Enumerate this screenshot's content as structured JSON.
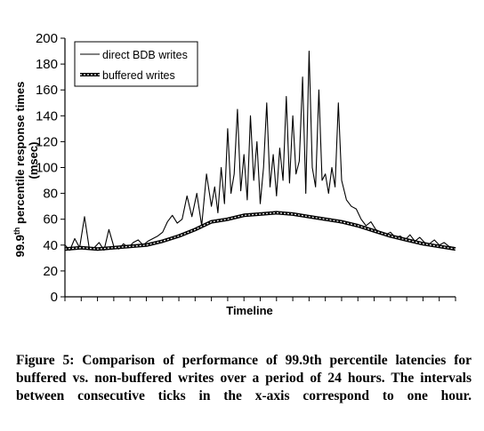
{
  "chart_data": {
    "type": "line",
    "title": "",
    "xlabel": "Timeline",
    "ylabel_main": "99.9th percentile response times",
    "ylabel_sup": "th",
    "ylabel_unit": "(msec)",
    "ylim": [
      0,
      200
    ],
    "yticks": [
      0,
      20,
      40,
      60,
      80,
      100,
      120,
      140,
      160,
      180,
      200
    ],
    "xlim": [
      0,
      24
    ],
    "xtick_count": 24,
    "legend": {
      "placement": "top-left"
    },
    "series": [
      {
        "name": "direct BDB writes",
        "color": "#000000",
        "x": [
          0.0,
          0.3,
          0.6,
          0.9,
          1.2,
          1.5,
          1.8,
          2.1,
          2.4,
          2.7,
          3.0,
          3.3,
          3.6,
          3.9,
          4.2,
          4.5,
          4.8,
          5.1,
          5.4,
          5.7,
          6.0,
          6.3,
          6.6,
          6.9,
          7.2,
          7.5,
          7.8,
          8.1,
          8.4,
          8.7,
          9.0,
          9.2,
          9.4,
          9.6,
          9.8,
          10.0,
          10.2,
          10.4,
          10.6,
          10.8,
          11.0,
          11.2,
          11.4,
          11.6,
          11.8,
          12.0,
          12.2,
          12.4,
          12.6,
          12.8,
          13.0,
          13.2,
          13.4,
          13.6,
          13.8,
          14.0,
          14.2,
          14.4,
          14.6,
          14.8,
          15.0,
          15.2,
          15.4,
          15.6,
          15.8,
          16.0,
          16.2,
          16.4,
          16.6,
          16.8,
          17.0,
          17.3,
          17.6,
          17.9,
          18.2,
          18.5,
          18.8,
          19.1,
          19.4,
          19.7,
          20.0,
          20.3,
          20.6,
          20.9,
          21.2,
          21.5,
          21.8,
          22.1,
          22.4,
          22.7,
          23.0,
          23.3,
          23.6,
          24.0
        ],
        "y": [
          40,
          36,
          45,
          38,
          62,
          37,
          38,
          42,
          36,
          52,
          39,
          37,
          41,
          38,
          42,
          44,
          40,
          43,
          45,
          47,
          50,
          58,
          63,
          57,
          60,
          78,
          62,
          80,
          55,
          95,
          70,
          85,
          65,
          100,
          72,
          130,
          80,
          95,
          145,
          82,
          110,
          75,
          140,
          90,
          120,
          72,
          100,
          150,
          85,
          110,
          78,
          115,
          90,
          155,
          88,
          140,
          95,
          105,
          170,
          80,
          190,
          100,
          85,
          160,
          90,
          95,
          80,
          100,
          85,
          150,
          90,
          75,
          70,
          68,
          60,
          55,
          58,
          52,
          50,
          48,
          50,
          46,
          47,
          44,
          48,
          43,
          46,
          42,
          41,
          44,
          40,
          42,
          39,
          38
        ]
      },
      {
        "name": "buffered writes",
        "color": "#000000",
        "x": [
          0.0,
          1.0,
          2.0,
          3.0,
          4.0,
          5.0,
          6.0,
          7.0,
          8.0,
          9.0,
          10.0,
          11.0,
          12.0,
          13.0,
          14.0,
          15.0,
          16.0,
          17.0,
          18.0,
          19.0,
          20.0,
          21.0,
          22.0,
          23.0,
          24.0
        ],
        "y": [
          37,
          38,
          37,
          38,
          39,
          40,
          43,
          47,
          52,
          58,
          60,
          63,
          64,
          65,
          64,
          62,
          60,
          58,
          55,
          51,
          47,
          44,
          41,
          39,
          37
        ]
      }
    ]
  },
  "caption": "Figure 5: Comparison of performance of 99.9th percentile latencies for buffered vs. non-buffered writes over a period of 24 hours. The intervals between consecutive ticks in the x-axis correspond to one hour."
}
